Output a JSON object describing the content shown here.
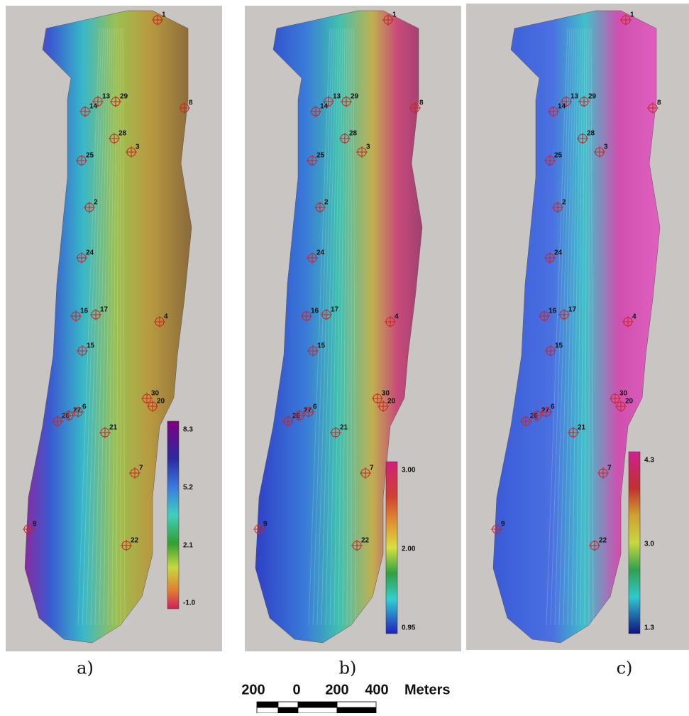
{
  "panels": [
    {
      "label": "a)",
      "colorbar_ticks": [
        "8.3",
        "5.2",
        "2.1",
        "-1.0"
      ]
    },
    {
      "label": "b)",
      "colorbar_ticks": [
        "3.00",
        "2.00",
        "0.95"
      ]
    },
    {
      "label": "c)",
      "colorbar_ticks": [
        "4.3",
        "3.0",
        "1.3"
      ]
    }
  ],
  "stations": [
    "1",
    "13",
    "29",
    "14",
    "8",
    "28",
    "25",
    "3",
    "2",
    "24",
    "16",
    "17",
    "4",
    "15",
    "30",
    "20",
    "26",
    "27",
    "6",
    "21",
    "7",
    "9",
    "22"
  ],
  "scale_bar": {
    "labels": [
      "200",
      "0",
      "200",
      "400"
    ],
    "unit": "Meters"
  }
}
